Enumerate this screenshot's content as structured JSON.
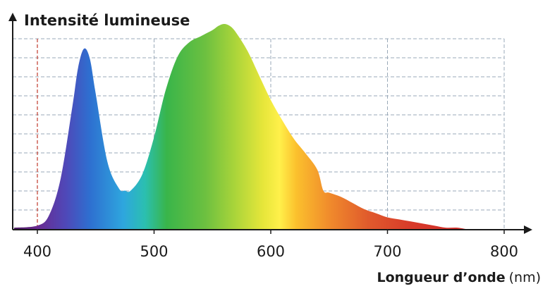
{
  "chart_data": {
    "type": "area",
    "ylabel": "Intensité lumineuse",
    "xlabel": "Longueur d’onde",
    "xunit": "(nm)",
    "xlim": [
      380,
      800
    ],
    "ylim": [
      0,
      1
    ],
    "x_ticks": [
      400,
      500,
      600,
      700,
      800
    ],
    "x_tick_labels": [
      "400",
      "500",
      "600",
      "700",
      "800"
    ],
    "grid": true,
    "highlight_line_x": 400,
    "fill": "visible-spectrum-gradient",
    "series": [
      {
        "x": [
          380,
          400,
          410,
          420,
          430,
          435,
          440,
          445,
          450,
          460,
          470,
          475,
          480,
          490,
          500,
          510,
          520,
          530,
          540,
          550,
          555,
          560,
          565,
          570,
          580,
          590,
          600,
          610,
          620,
          630,
          640,
          645,
          650,
          660,
          670,
          680,
          690,
          700,
          710,
          720,
          730,
          740,
          750,
          760,
          770
        ],
        "values": [
          0.01,
          0.02,
          0.07,
          0.25,
          0.6,
          0.79,
          0.88,
          0.83,
          0.66,
          0.33,
          0.2,
          0.19,
          0.19,
          0.27,
          0.45,
          0.68,
          0.84,
          0.91,
          0.94,
          0.97,
          0.99,
          1.0,
          0.99,
          0.96,
          0.87,
          0.75,
          0.63,
          0.53,
          0.44,
          0.37,
          0.29,
          0.19,
          0.18,
          0.16,
          0.13,
          0.1,
          0.08,
          0.06,
          0.05,
          0.04,
          0.03,
          0.02,
          0.01,
          0.01,
          0.0
        ]
      }
    ]
  }
}
